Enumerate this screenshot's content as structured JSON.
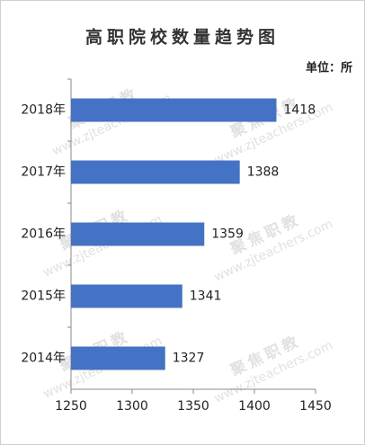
{
  "chart_data": {
    "type": "bar",
    "orientation": "horizontal",
    "title": "高职院校数量趋势图",
    "unit_label": "单位：所",
    "categories": [
      "2018年",
      "2017年",
      "2016年",
      "2015年",
      "2014年"
    ],
    "values": [
      1418,
      1388,
      1359,
      1341,
      1327
    ],
    "color": "#4472c4",
    "xlim": [
      1250,
      1450
    ],
    "xticks": [
      1250,
      1300,
      1350,
      1400,
      1450
    ],
    "grid": false,
    "watermarks": [
      "聚焦职教",
      "www.zjteachers.com"
    ]
  }
}
